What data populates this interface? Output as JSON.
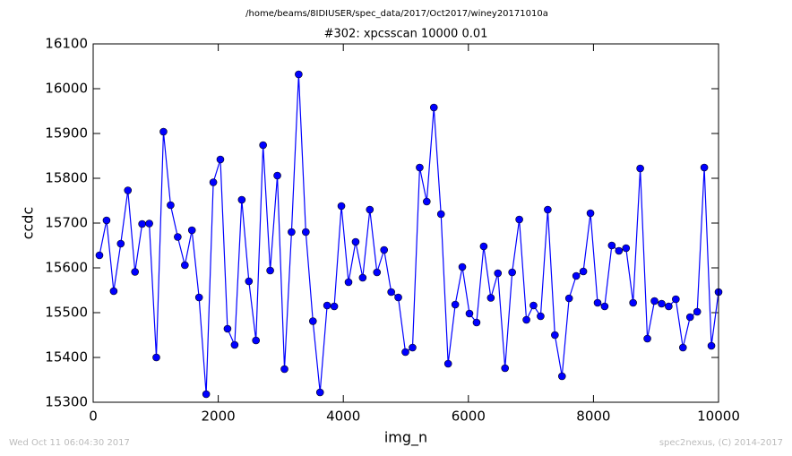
{
  "chart_data": {
    "type": "line",
    "suptitle": "/home/beams/8IDIUSER/spec_data/2017/Oct2017/winey20171010a",
    "title": "#302: xpcsscan 10000 0.01",
    "xlabel": "img_n",
    "ylabel": "ccdc",
    "footer_left": "Wed Oct 11 06:04:30 2017",
    "footer_right": "spec2nexus, (C) 2014-2017",
    "x": [
      100,
      214,
      328,
      441,
      555,
      669,
      783,
      897,
      1010,
      1124,
      1238,
      1352,
      1466,
      1579,
      1693,
      1807,
      1921,
      2034,
      2148,
      2262,
      2376,
      2490,
      2603,
      2717,
      2831,
      2945,
      3059,
      3172,
      3286,
      3400,
      3514,
      3628,
      3741,
      3855,
      3969,
      4083,
      4197,
      4310,
      4424,
      4538,
      4652,
      4766,
      4879,
      4993,
      5107,
      5221,
      5334,
      5448,
      5562,
      5676,
      5790,
      5903,
      6017,
      6131,
      6245,
      6359,
      6472,
      6586,
      6700,
      6814,
      6928,
      7041,
      7155,
      7269,
      7383,
      7497,
      7610,
      7724,
      7838,
      7952,
      8066,
      8179,
      8293,
      8407,
      8521,
      8634,
      8748,
      8862,
      8976,
      9090,
      9203,
      9317,
      9431,
      9545,
      9659,
      9772,
      9886,
      10000
    ],
    "series": [
      {
        "color": "#0000ff",
        "values": [
          15628,
          15706,
          15548,
          15654,
          15773,
          15591,
          15698,
          15699,
          15400,
          15904,
          15740,
          15669,
          15606,
          15684,
          15534,
          15318,
          15791,
          15842,
          15464,
          15428,
          15752,
          15570,
          15438,
          15874,
          15594,
          15806,
          15374,
          15680,
          16032,
          15680,
          15481,
          15322,
          15516,
          15514,
          15738,
          15568,
          15658,
          15578,
          15730,
          15590,
          15640,
          15546,
          15534,
          15412,
          15422,
          15824,
          15748,
          15958,
          15720,
          15386,
          15518,
          15602,
          15498,
          15478,
          15648,
          15533,
          15588,
          15376,
          15590,
          15708,
          15484,
          15516,
          15492,
          15730,
          15450,
          15358,
          15532,
          15582,
          15592,
          15722,
          15522,
          15514,
          15650,
          15638,
          15644,
          15522,
          15822,
          15442,
          15526,
          15520,
          15514,
          15530,
          15422,
          15490,
          15502,
          15824,
          15426,
          15546
        ]
      }
    ],
    "xlim": [
      0,
      10000
    ],
    "xticks": [
      0,
      2000,
      4000,
      6000,
      8000,
      10000
    ],
    "ylim": [
      15300,
      16100
    ],
    "yticks": [
      15300,
      15400,
      15500,
      15600,
      15700,
      15800,
      15900,
      16000,
      16100
    ]
  }
}
